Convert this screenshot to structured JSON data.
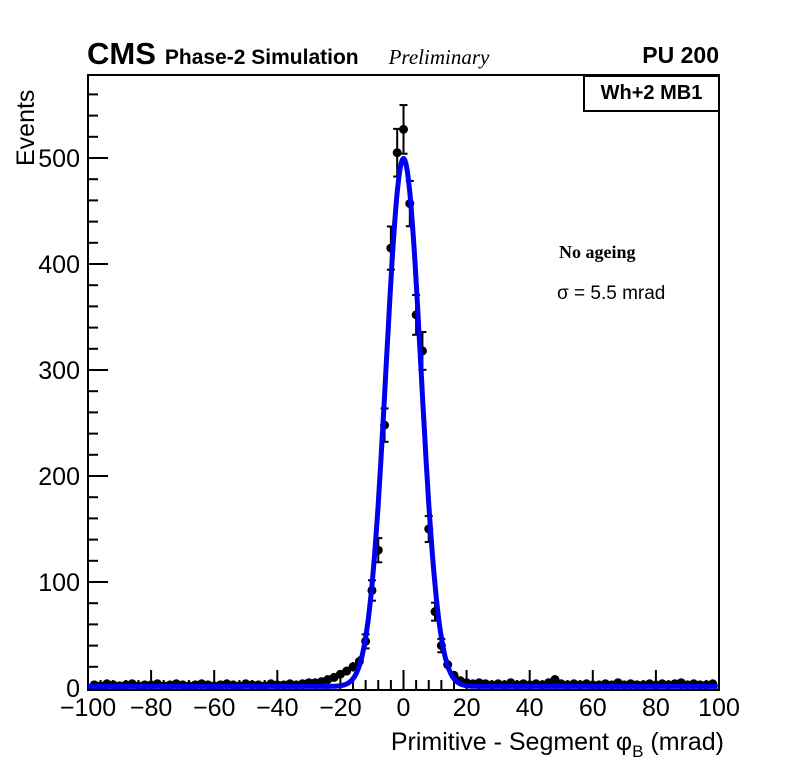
{
  "header": {
    "cms": "CMS",
    "experiment_label": "Phase-2 Simulation",
    "preliminary": "Preliminary",
    "pileup": "PU 200"
  },
  "legend": {
    "label": "Wh+2 MB1"
  },
  "annotations": {
    "ageing": "No ageing",
    "resolution": "σ = 5.5 mrad"
  },
  "chart_data": {
    "type": "scatter",
    "title": "CMS Phase-2 Simulation Preliminary — PU 200",
    "ylabel": "Events",
    "xlabel_parts": {
      "prefix": "Primitive - Segment ",
      "phi": "φ",
      "sub": "B",
      "suffix": " (mrad)"
    },
    "xlim": [
      -100,
      100
    ],
    "ylim": [
      0,
      578
    ],
    "grid": false,
    "x_minor_step": 4,
    "y_minor_step": 20,
    "xticks": [
      {
        "v": -100,
        "label": "−100"
      },
      {
        "v": -80,
        "label": "−80"
      },
      {
        "v": -60,
        "label": "−60"
      },
      {
        "v": -40,
        "label": "−40"
      },
      {
        "v": -20,
        "label": "−20"
      },
      {
        "v": 0,
        "label": "0"
      },
      {
        "v": 20,
        "label": "20"
      },
      {
        "v": 40,
        "label": "40"
      },
      {
        "v": 60,
        "label": "60"
      },
      {
        "v": 80,
        "label": "80"
      },
      {
        "v": 100,
        "label": "100"
      }
    ],
    "yticks": [
      {
        "v": 0,
        "label": "0"
      },
      {
        "v": 100,
        "label": "100"
      },
      {
        "v": 200,
        "label": "200"
      },
      {
        "v": 300,
        "label": "300"
      },
      {
        "v": 400,
        "label": "400"
      },
      {
        "v": 500,
        "label": "500"
      }
    ],
    "marker": {
      "color": "#000000",
      "radius": 4.5,
      "error_bars": "sqrt(N)"
    },
    "fit": {
      "type": "gaussian+constant",
      "amplitude": 498,
      "mean": 0,
      "sigma": 5.5,
      "constant": 1.5,
      "color": "#0000ee",
      "line_width": 5
    },
    "points": [
      [
        -98,
        3
      ],
      [
        -96,
        2
      ],
      [
        -94,
        4
      ],
      [
        -92,
        3
      ],
      [
        -90,
        2
      ],
      [
        -88,
        3
      ],
      [
        -86,
        4
      ],
      [
        -84,
        2
      ],
      [
        -82,
        3
      ],
      [
        -80,
        3
      ],
      [
        -78,
        4
      ],
      [
        -76,
        2
      ],
      [
        -74,
        3
      ],
      [
        -72,
        4
      ],
      [
        -70,
        3
      ],
      [
        -68,
        2
      ],
      [
        -66,
        3
      ],
      [
        -64,
        4
      ],
      [
        -62,
        3
      ],
      [
        -60,
        2
      ],
      [
        -58,
        3
      ],
      [
        -56,
        4
      ],
      [
        -54,
        3
      ],
      [
        -52,
        2
      ],
      [
        -50,
        4
      ],
      [
        -48,
        3
      ],
      [
        -46,
        3
      ],
      [
        -44,
        2
      ],
      [
        -42,
        4
      ],
      [
        -40,
        3
      ],
      [
        -38,
        3
      ],
      [
        -36,
        4
      ],
      [
        -34,
        3
      ],
      [
        -32,
        4
      ],
      [
        -30,
        5
      ],
      [
        -28,
        5
      ],
      [
        -26,
        6
      ],
      [
        -24,
        8
      ],
      [
        -22,
        10
      ],
      [
        -20,
        13
      ],
      [
        -18,
        16
      ],
      [
        -16,
        20
      ],
      [
        -14,
        25
      ],
      [
        -12,
        44
      ],
      [
        -10,
        92
      ],
      [
        -8,
        130
      ],
      [
        -6,
        248
      ],
      [
        -4,
        415
      ],
      [
        -2,
        505
      ],
      [
        0,
        527
      ],
      [
        2,
        457
      ],
      [
        4,
        352
      ],
      [
        6,
        318
      ],
      [
        8,
        150
      ],
      [
        10,
        72
      ],
      [
        12,
        40
      ],
      [
        14,
        22
      ],
      [
        16,
        12
      ],
      [
        18,
        7
      ],
      [
        20,
        5
      ],
      [
        22,
        4
      ],
      [
        24,
        5
      ],
      [
        26,
        4
      ],
      [
        28,
        3
      ],
      [
        30,
        4
      ],
      [
        32,
        3
      ],
      [
        34,
        5
      ],
      [
        36,
        3
      ],
      [
        38,
        4
      ],
      [
        40,
        3
      ],
      [
        42,
        4
      ],
      [
        44,
        3
      ],
      [
        46,
        5
      ],
      [
        48,
        8
      ],
      [
        50,
        4
      ],
      [
        52,
        3
      ],
      [
        54,
        4
      ],
      [
        56,
        3
      ],
      [
        58,
        4
      ],
      [
        60,
        3
      ],
      [
        62,
        3
      ],
      [
        64,
        4
      ],
      [
        66,
        3
      ],
      [
        68,
        5
      ],
      [
        70,
        3
      ],
      [
        72,
        4
      ],
      [
        74,
        3
      ],
      [
        76,
        3
      ],
      [
        78,
        4
      ],
      [
        80,
        3
      ],
      [
        82,
        4
      ],
      [
        84,
        3
      ],
      [
        86,
        4
      ],
      [
        88,
        5
      ],
      [
        90,
        3
      ],
      [
        92,
        4
      ],
      [
        94,
        3
      ],
      [
        96,
        3
      ],
      [
        98,
        4
      ]
    ]
  }
}
